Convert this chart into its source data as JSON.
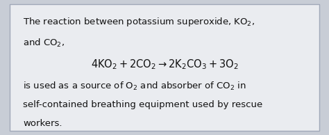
{
  "background_color": "#c8cdd6",
  "card_color": "#eaecf0",
  "border_color": "#a0a8b8",
  "text_color": "#111111",
  "line1": "The reaction between potassium superoxide, $\\mathrm{KO_2}$,",
  "line2": "and $\\mathrm{CO_2}$,",
  "equation": "$4\\mathrm{KO_2} + 2\\mathrm{CO_2} \\rightarrow 2\\mathrm{K_2CO_3} + 3\\mathrm{O_2}$",
  "line4": "is used as a source of $\\mathrm{O_2}$ and absorber of $\\mathrm{CO_2}$ in",
  "line5": "self-contained breathing equipment used by rescue",
  "line6": "workers.",
  "font_size_text": 9.5,
  "font_size_eq": 10.5
}
